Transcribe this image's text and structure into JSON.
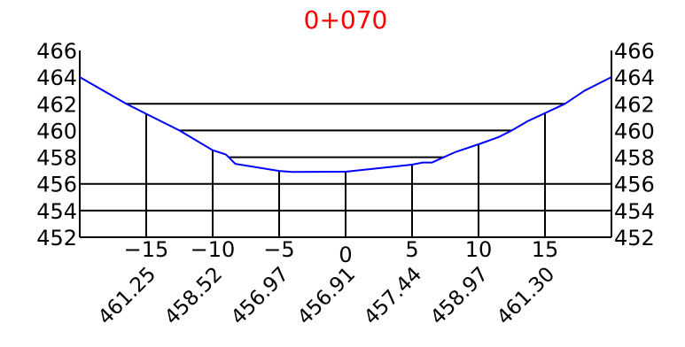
{
  "chart_data": {
    "type": "line",
    "title": "0+070",
    "title_color": "#ff0000",
    "profile_color": "#0000ff",
    "grid_color": "#000000",
    "xlim": [
      -20,
      20
    ],
    "ylim": [
      452,
      466
    ],
    "y_ticks": [
      "452",
      "454",
      "456",
      "458",
      "460",
      "462",
      "464",
      "466"
    ],
    "x_ticks": [
      {
        "value": -15,
        "label": "−15"
      },
      {
        "value": -10,
        "label": "−10"
      },
      {
        "value": -5,
        "label": "−5"
      },
      {
        "value": 0,
        "label": "0"
      },
      {
        "value": 5,
        "label": "5"
      },
      {
        "value": 10,
        "label": "10"
      },
      {
        "value": 15,
        "label": "15"
      }
    ],
    "stations": [
      {
        "x": -15,
        "elevation": "461.25"
      },
      {
        "x": -10,
        "elevation": "458.52"
      },
      {
        "x": -5,
        "elevation": "456.97"
      },
      {
        "x": 0,
        "elevation": "456.91"
      },
      {
        "x": 5,
        "elevation": "457.44"
      },
      {
        "x": 10,
        "elevation": "458.97"
      },
      {
        "x": 15,
        "elevation": "461.30"
      }
    ],
    "grid": true,
    "series": [
      {
        "points": [
          [
            -20,
            464.0
          ],
          [
            -16.5,
            462.0
          ],
          [
            -15,
            461.25
          ],
          [
            -12.5,
            460.0
          ],
          [
            -10,
            458.52
          ],
          [
            -9,
            458.2
          ],
          [
            -8.3,
            457.5
          ],
          [
            -5,
            456.97
          ],
          [
            -4,
            456.9
          ],
          [
            0,
            456.91
          ],
          [
            5,
            457.44
          ],
          [
            5.8,
            457.6
          ],
          [
            6.5,
            457.6
          ],
          [
            8.3,
            458.4
          ],
          [
            10,
            458.97
          ],
          [
            11.5,
            459.5
          ],
          [
            12.5,
            460.0
          ],
          [
            13.7,
            460.7
          ],
          [
            15,
            461.3
          ],
          [
            16.5,
            462.0
          ],
          [
            18,
            463.0
          ],
          [
            20,
            464.0
          ]
        ]
      }
    ]
  }
}
